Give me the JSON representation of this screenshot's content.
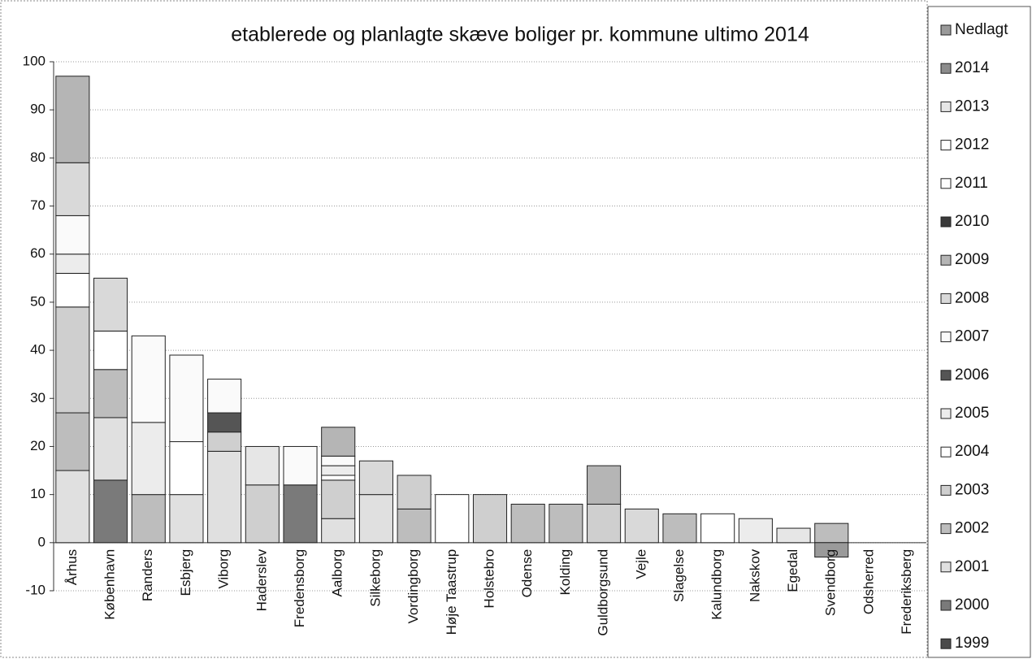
{
  "chart_data": {
    "type": "stacked_bar",
    "title": "etablerede og planlagte skæve boliger pr. kommune ultimo 2014",
    "categories": [
      "Århus",
      "København",
      "Randers",
      "Esbjerg",
      "Viborg",
      "Haderslev",
      "Fredensborg",
      "Aalborg",
      "Silkeborg",
      "Vordingborg",
      "Høje Taastrup",
      "Holstebro",
      "Odense",
      "Kolding",
      "Guldborgsund",
      "Vejle",
      "Slagelse",
      "Kalundborg",
      "Nakskov",
      "Egedal",
      "Svendborg",
      "Odsherred",
      "Frederiksberg"
    ],
    "series": [
      {
        "name": "Nedlagt",
        "color": "#9a9a9a",
        "values": [
          0,
          0,
          0,
          0,
          0,
          0,
          0,
          0,
          0,
          0,
          0,
          0,
          0,
          0,
          0,
          0,
          0,
          0,
          0,
          0,
          -3,
          0,
          0
        ]
      },
      {
        "name": "2014",
        "color": "#8c8c8c",
        "values": [
          0,
          0,
          0,
          0,
          0,
          0,
          0,
          0,
          0,
          0,
          0,
          0,
          0,
          0,
          0,
          0,
          0,
          0,
          0,
          0,
          0,
          0,
          0
        ]
      },
      {
        "name": "2013",
        "color": "#e6e6e6",
        "values": [
          0,
          0,
          0,
          0,
          0,
          8,
          0,
          0,
          0,
          0,
          0,
          0,
          0,
          0,
          0,
          0,
          0,
          0,
          0,
          3,
          0,
          0,
          0
        ]
      },
      {
        "name": "2012",
        "color": "#ffffff",
        "values": [
          0,
          0,
          0,
          0,
          0,
          0,
          0,
          0,
          0,
          0,
          0,
          0,
          0,
          0,
          0,
          0,
          0,
          0,
          0,
          0,
          0,
          0,
          0
        ]
      },
      {
        "name": "2011",
        "color": "#fdfdfd",
        "values": [
          0,
          0,
          0,
          0,
          0,
          0,
          0,
          0,
          0,
          0,
          0,
          0,
          0,
          0,
          0,
          0,
          0,
          0,
          0,
          0,
          0,
          0,
          0
        ]
      },
      {
        "name": "2010",
        "color": "#3a3a3a",
        "values": [
          0,
          0,
          0,
          0,
          0,
          0,
          0,
          0,
          0,
          0,
          0,
          0,
          0,
          0,
          0,
          0,
          0,
          0,
          0,
          0,
          0,
          0,
          0
        ]
      },
      {
        "name": "2009",
        "color": "#b5b5b5",
        "values": [
          18,
          0,
          0,
          0,
          0,
          0,
          0,
          6,
          0,
          0,
          0,
          0,
          0,
          0,
          8,
          0,
          0,
          0,
          0,
          0,
          0,
          0,
          0
        ]
      },
      {
        "name": "2008",
        "color": "#d9d9d9",
        "values": [
          11,
          11,
          0,
          0,
          0,
          0,
          0,
          0,
          7,
          0,
          0,
          0,
          0,
          0,
          0,
          7,
          0,
          0,
          0,
          0,
          0,
          0,
          0
        ]
      },
      {
        "name": "2007",
        "color": "#fafafa",
        "values": [
          8,
          0,
          18,
          18,
          7,
          0,
          8,
          2,
          0,
          0,
          0,
          0,
          0,
          0,
          0,
          0,
          0,
          0,
          0,
          0,
          0,
          0,
          0
        ]
      },
      {
        "name": "2006",
        "color": "#555555",
        "values": [
          0,
          0,
          0,
          0,
          4,
          0,
          0,
          0,
          0,
          0,
          0,
          0,
          0,
          0,
          0,
          0,
          0,
          0,
          0,
          0,
          0,
          0,
          0
        ]
      },
      {
        "name": "2005",
        "color": "#ececec",
        "values": [
          4,
          0,
          15,
          0,
          0,
          0,
          0,
          2,
          0,
          0,
          0,
          0,
          0,
          0,
          0,
          0,
          0,
          0,
          5,
          0,
          0,
          0,
          0
        ]
      },
      {
        "name": "2004",
        "color": "#ffffff",
        "values": [
          7,
          8,
          0,
          11,
          0,
          0,
          0,
          1,
          0,
          0,
          10,
          0,
          0,
          0,
          0,
          0,
          0,
          6,
          0,
          0,
          0,
          0,
          0
        ]
      },
      {
        "name": "2003",
        "color": "#cfcfcf",
        "values": [
          22,
          0,
          0,
          0,
          4,
          12,
          0,
          8,
          0,
          7,
          0,
          10,
          0,
          0,
          8,
          0,
          0,
          0,
          0,
          0,
          0,
          0,
          0
        ]
      },
      {
        "name": "2002",
        "color": "#bdbdbd",
        "values": [
          12,
          10,
          10,
          0,
          0,
          0,
          0,
          0,
          0,
          7,
          0,
          0,
          8,
          8,
          0,
          0,
          6,
          0,
          0,
          0,
          4,
          0,
          0
        ]
      },
      {
        "name": "2001",
        "color": "#e0e0e0",
        "values": [
          15,
          13,
          0,
          10,
          19,
          0,
          0,
          5,
          10,
          0,
          0,
          0,
          0,
          0,
          0,
          0,
          0,
          0,
          0,
          0,
          0,
          0,
          0
        ]
      },
      {
        "name": "2000",
        "color": "#7a7a7a",
        "values": [
          0,
          13,
          0,
          0,
          0,
          0,
          12,
          0,
          0,
          0,
          0,
          0,
          0,
          0,
          0,
          0,
          0,
          0,
          0,
          0,
          0,
          0,
          0
        ]
      },
      {
        "name": "1999",
        "color": "#4a4a4a",
        "values": [
          0,
          0,
          0,
          0,
          0,
          0,
          0,
          0,
          0,
          0,
          0,
          0,
          0,
          0,
          0,
          0,
          0,
          0,
          0,
          0,
          0,
          0,
          0
        ]
      }
    ],
    "ylim": [
      -10,
      100
    ],
    "yticks": [
      -10,
      0,
      10,
      20,
      30,
      40,
      50,
      60,
      70,
      80,
      90,
      100
    ],
    "grid": true
  }
}
